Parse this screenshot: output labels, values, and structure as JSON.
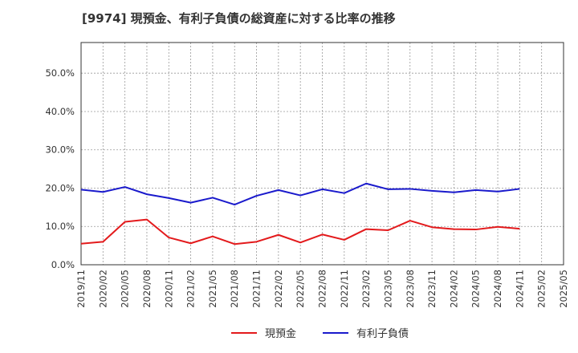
{
  "chart_data": {
    "type": "line",
    "title": "[9974]  現預金、有利子負債の総資産に対する比率の推移",
    "xlabel": "",
    "ylabel": "",
    "ylim": [
      0,
      0.58
    ],
    "yticks": [
      0.0,
      0.1,
      0.2,
      0.3,
      0.4,
      0.5
    ],
    "ytick_labels": [
      "0.0%",
      "10.0%",
      "20.0%",
      "30.0%",
      "40.0%",
      "50.0%"
    ],
    "grid": true,
    "legend_position": "bottom-center",
    "categories": [
      "2019/11",
      "2020/02",
      "2020/05",
      "2020/08",
      "2020/11",
      "2021/02",
      "2021/05",
      "2021/08",
      "2021/11",
      "2022/02",
      "2022/05",
      "2022/08",
      "2022/11",
      "2023/02",
      "2023/05",
      "2023/08",
      "2023/11",
      "2024/02",
      "2024/05",
      "2024/08",
      "2024/11",
      "2025/02",
      "2025/05"
    ],
    "series": [
      {
        "name": "現預金",
        "color": "#e31a1c",
        "values": [
          0.055,
          0.06,
          0.112,
          0.118,
          0.071,
          0.056,
          0.074,
          0.054,
          0.06,
          0.078,
          0.058,
          0.079,
          0.065,
          0.093,
          0.09,
          0.115,
          0.098,
          0.093,
          0.092,
          0.099,
          0.094,
          null,
          null
        ]
      },
      {
        "name": "有利子負債",
        "color": "#1a1acc",
        "values": [
          0.196,
          0.19,
          0.203,
          0.184,
          0.174,
          0.162,
          0.175,
          0.157,
          0.18,
          0.195,
          0.181,
          0.197,
          0.187,
          0.212,
          0.197,
          0.198,
          0.193,
          0.189,
          0.195,
          0.191,
          0.198,
          null,
          null
        ]
      }
    ]
  }
}
